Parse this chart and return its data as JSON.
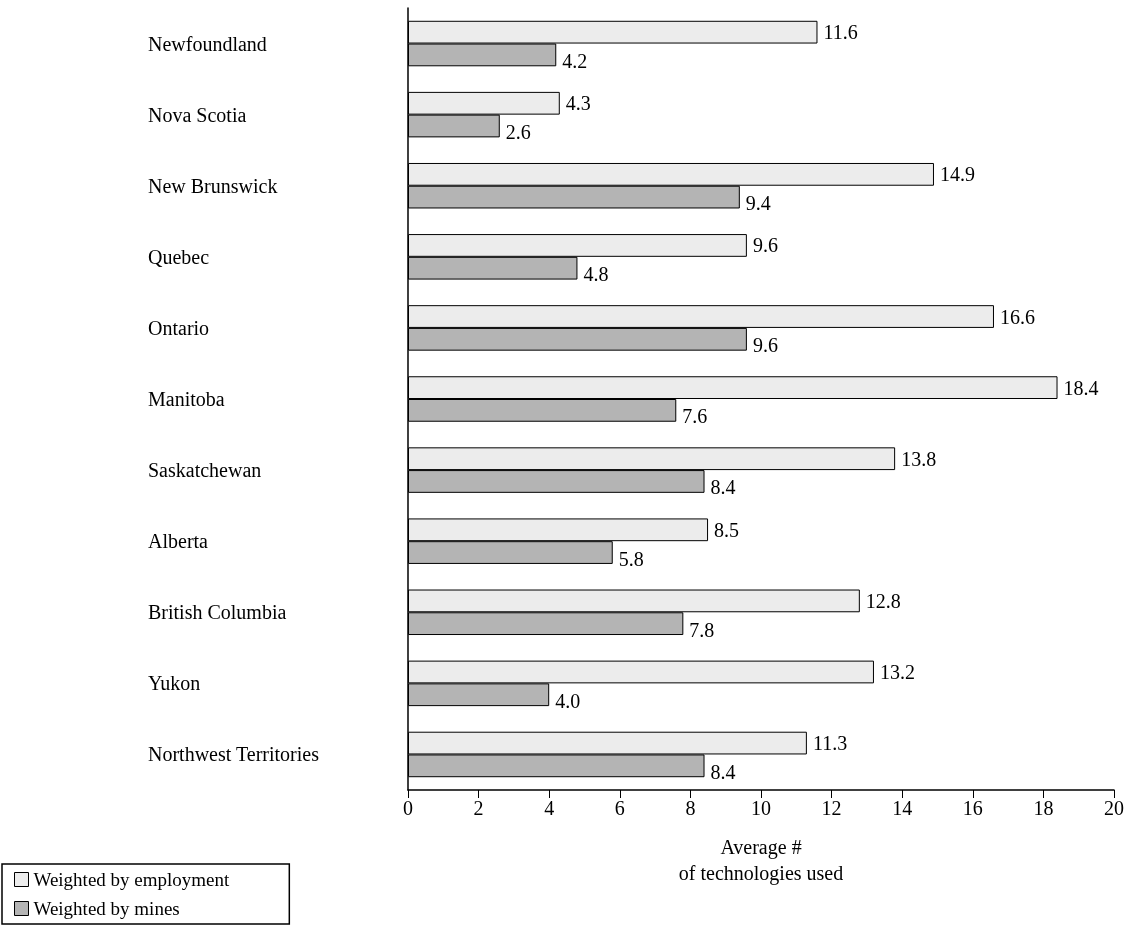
{
  "chart_data": {
    "type": "bar",
    "orientation": "horizontal",
    "xlabel": "Average #\nof technologies used",
    "categories": [
      "Newfoundland",
      "Nova Scotia",
      "New Brunswick",
      "Quebec",
      "Ontario",
      "Manitoba",
      "Saskatchewan",
      "Alberta",
      "British Columbia",
      "Yukon",
      "Northwest Territories"
    ],
    "series": [
      {
        "name": "Weighted by employment",
        "color": "#ececec",
        "values": [
          11.6,
          4.3,
          14.9,
          9.6,
          16.6,
          18.4,
          13.8,
          8.5,
          12.8,
          13.2,
          11.3
        ],
        "value_labels": [
          "11.6",
          "4.3",
          "14.9",
          "9.6",
          "16.6",
          "18.4",
          "13.8",
          "8.5",
          "12.8",
          "13.2",
          "11.3"
        ]
      },
      {
        "name": "Weighted by mines",
        "color": "#b4b4b4",
        "values": [
          4.2,
          2.6,
          9.4,
          4.8,
          9.6,
          7.6,
          8.4,
          5.8,
          7.8,
          4.0,
          8.4
        ],
        "value_labels": [
          "4.2",
          "2.6",
          "9.4",
          "4.8",
          "9.6",
          "7.6",
          "8.4",
          "5.8",
          "7.8",
          "4.0",
          "8.4"
        ]
      }
    ],
    "xlim": [
      0,
      20
    ],
    "xticks": [
      0,
      2,
      4,
      6,
      8,
      10,
      12,
      14,
      16,
      18,
      20
    ],
    "grid": false,
    "legend": "bottom left"
  }
}
